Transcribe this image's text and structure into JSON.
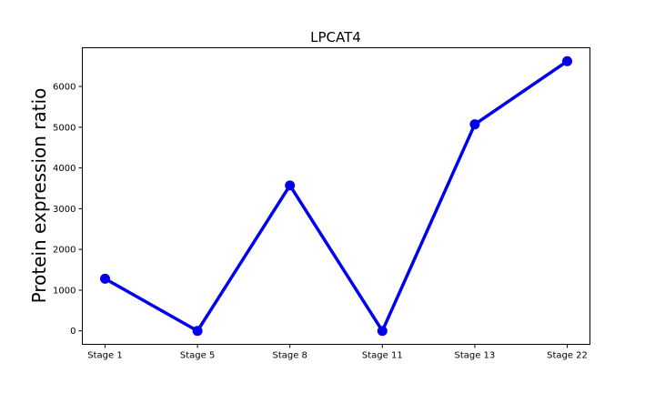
{
  "chart_data": {
    "type": "line",
    "title": "LPCAT4",
    "xlabel": "",
    "ylabel": "Protein expression ratio",
    "categories": [
      "Stage 1",
      "Stage 5",
      "Stage 8",
      "Stage 11",
      "Stage 13",
      "Stage 22"
    ],
    "series": [
      {
        "values": [
          1280,
          0,
          3570,
          0,
          5070,
          6620
        ],
        "color": "#0000ee"
      }
    ],
    "y_ticks": [
      0,
      1000,
      2000,
      3000,
      4000,
      5000,
      6000
    ],
    "ylim": [
      -330,
      6950
    ],
    "grid": false,
    "legend": "none"
  }
}
